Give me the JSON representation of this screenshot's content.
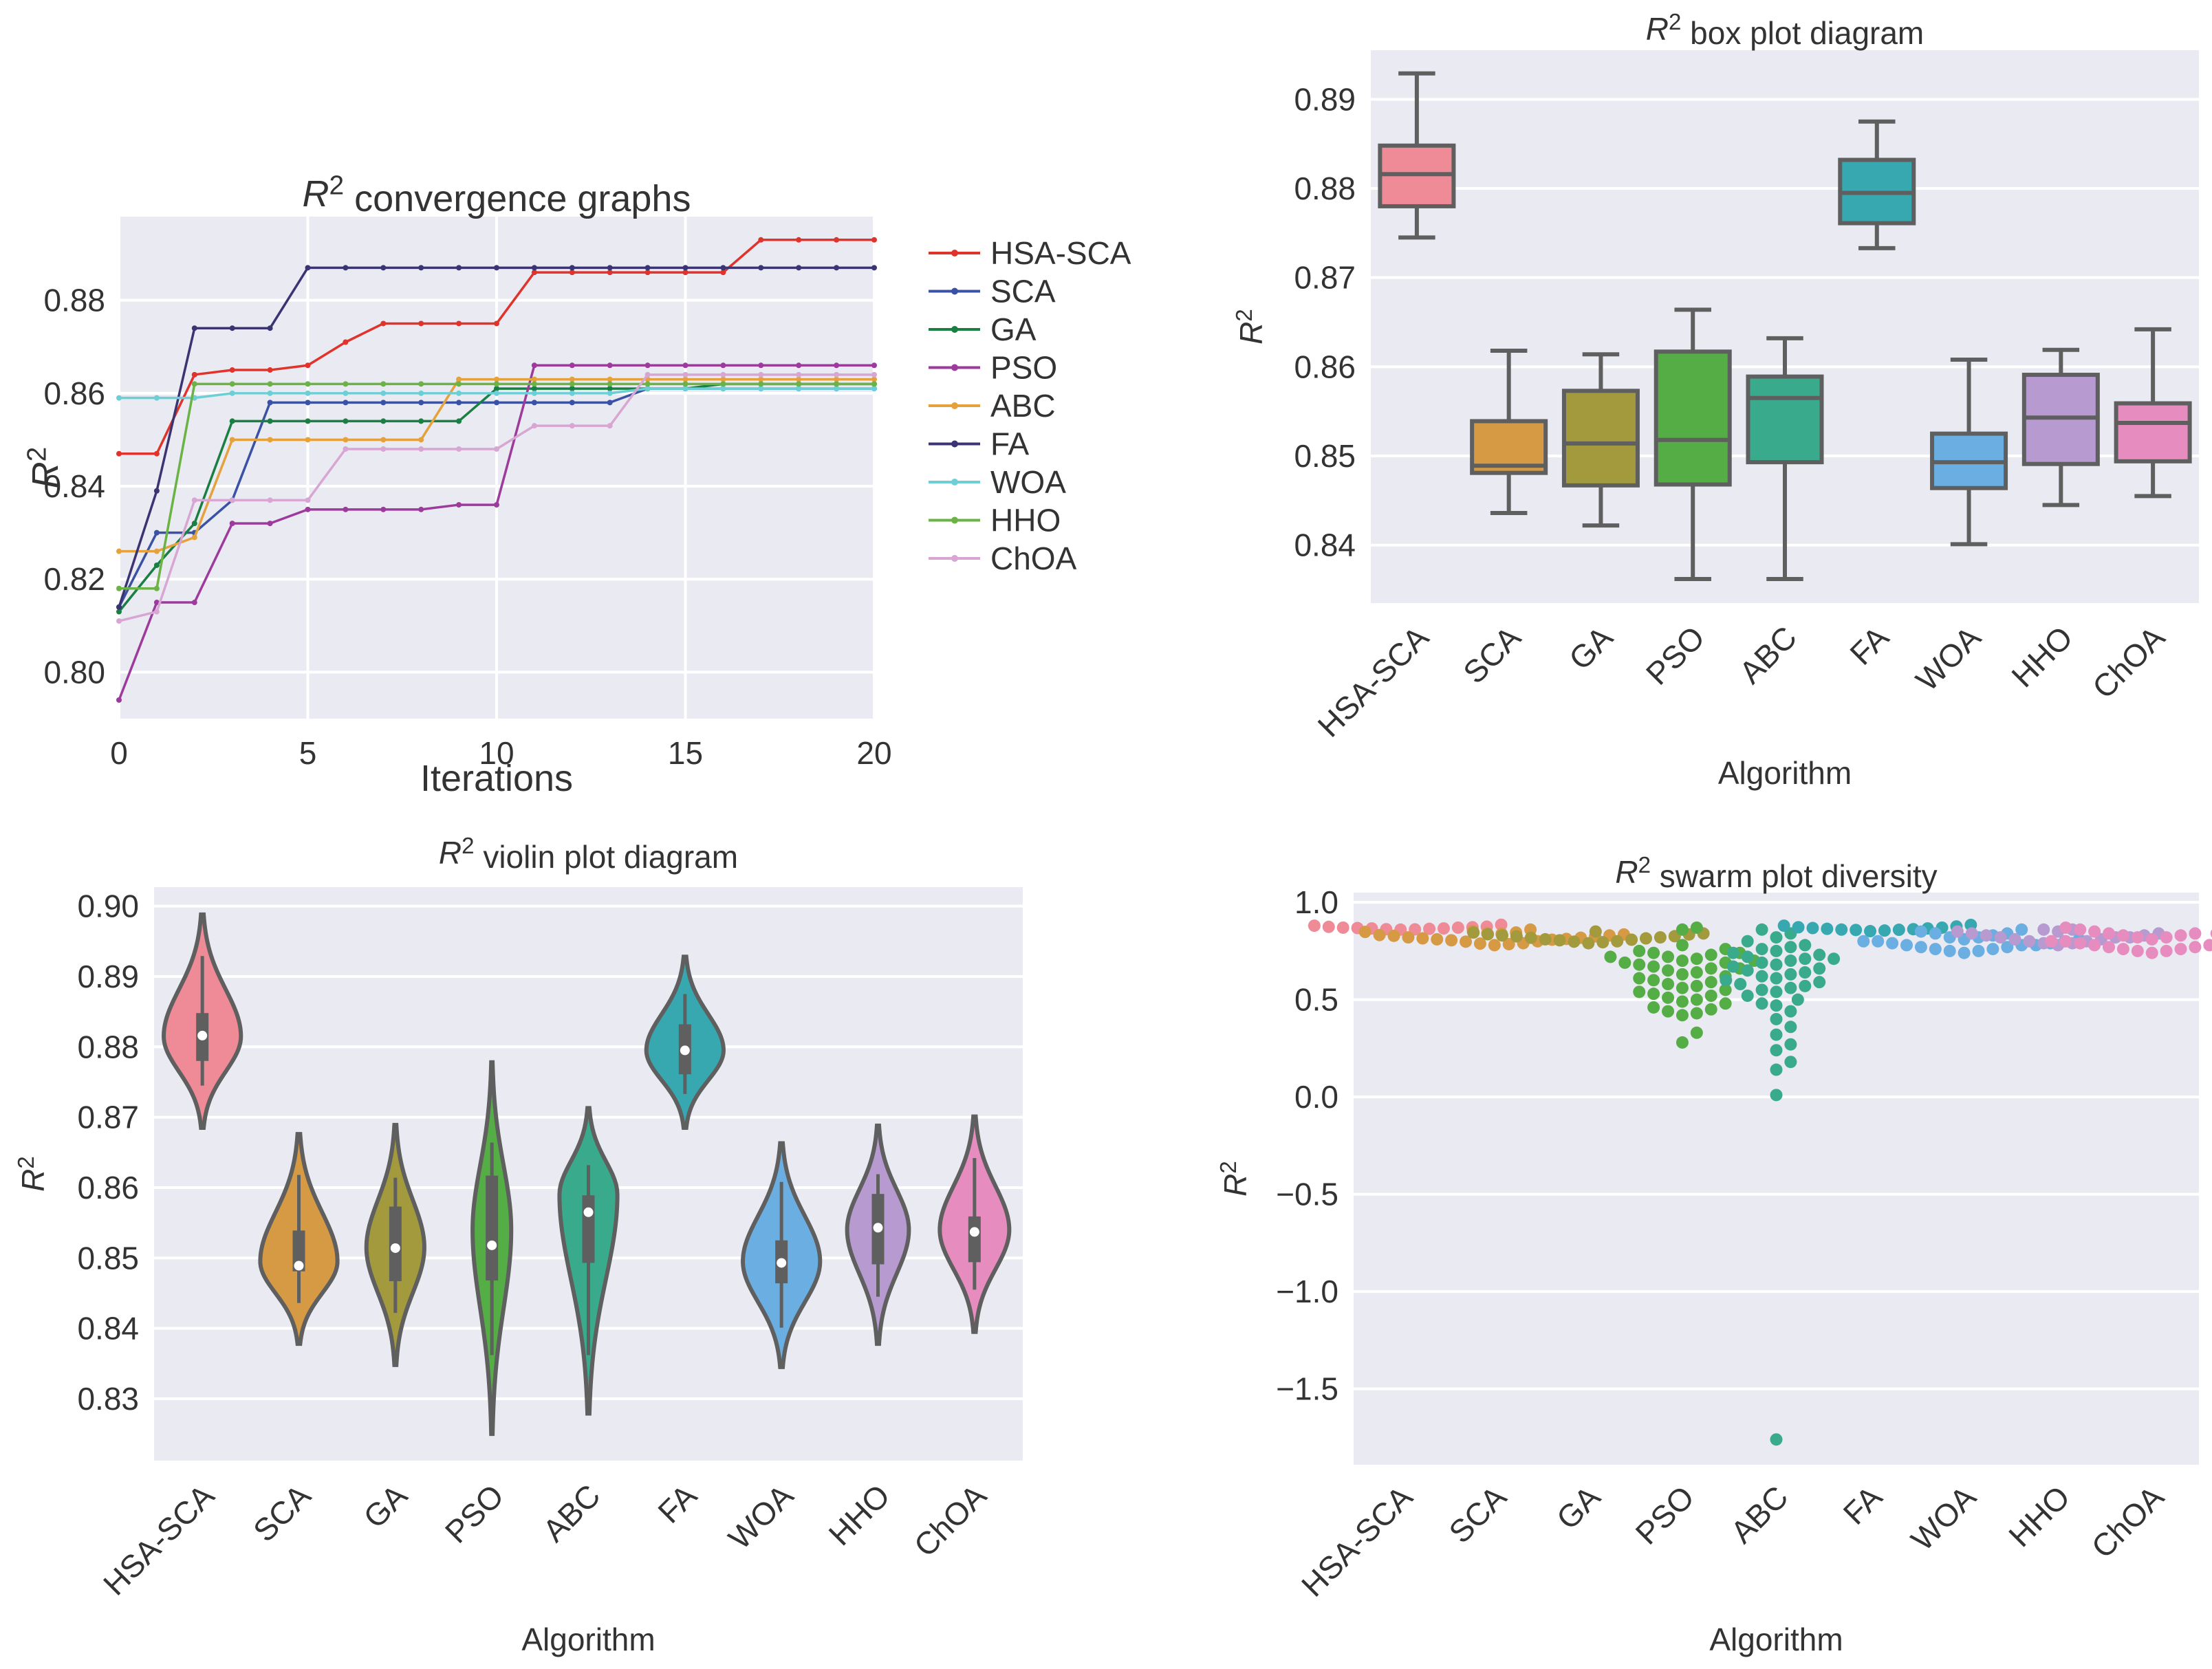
{
  "colors": {
    "panel_bg": "#eaeaf2",
    "grid": "#ffffff",
    "edge": "#5f5f5f"
  },
  "chart_data": [
    {
      "id": "convergence",
      "type": "line",
      "title_prefix": "R",
      "title_sup": "2",
      "title_rest": " convergence graphs",
      "xlabel": "Iterations",
      "ylabel_prefix": "R",
      "ylabel_sup": "2",
      "xlim": [
        0,
        20
      ],
      "ylim": [
        0.79,
        0.898
      ],
      "xticks": [
        0,
        5,
        10,
        15,
        20
      ],
      "xtick_labels": [
        "0",
        "5",
        "10",
        "15",
        "20"
      ],
      "yticks": [
        0.8,
        0.82,
        0.84,
        0.86,
        0.88
      ],
      "ytick_labels": [
        "0.80",
        "0.82",
        "0.84",
        "0.86",
        "0.88"
      ],
      "x": [
        0,
        1,
        2,
        3,
        4,
        5,
        6,
        7,
        8,
        9,
        10,
        11,
        12,
        13,
        14,
        15,
        16,
        17,
        18,
        19,
        20
      ],
      "series": [
        {
          "name": "HSA-SCA",
          "color": "#e0332b",
          "values": [
            0.847,
            0.847,
            0.864,
            0.865,
            0.865,
            0.866,
            0.871,
            0.875,
            0.875,
            0.875,
            0.875,
            0.886,
            0.886,
            0.886,
            0.886,
            0.886,
            0.886,
            0.893,
            0.893,
            0.893,
            0.893
          ]
        },
        {
          "name": "SCA",
          "color": "#3a52a4",
          "values": [
            0.814,
            0.83,
            0.83,
            0.837,
            0.858,
            0.858,
            0.858,
            0.858,
            0.858,
            0.858,
            0.858,
            0.858,
            0.858,
            0.858,
            0.861,
            0.861,
            0.861,
            0.861,
            0.861,
            0.861,
            0.861
          ]
        },
        {
          "name": "GA",
          "color": "#1a7f43",
          "values": [
            0.813,
            0.823,
            0.832,
            0.854,
            0.854,
            0.854,
            0.854,
            0.854,
            0.854,
            0.854,
            0.861,
            0.861,
            0.861,
            0.861,
            0.861,
            0.861,
            0.862,
            0.862,
            0.862,
            0.862,
            0.862
          ]
        },
        {
          "name": "PSO",
          "color": "#9c3b9c",
          "values": [
            0.794,
            0.815,
            0.815,
            0.832,
            0.832,
            0.835,
            0.835,
            0.835,
            0.835,
            0.836,
            0.836,
            0.866,
            0.866,
            0.866,
            0.866,
            0.866,
            0.866,
            0.866,
            0.866,
            0.866,
            0.866
          ]
        },
        {
          "name": "ABC",
          "color": "#e5a13b",
          "values": [
            0.826,
            0.826,
            0.829,
            0.85,
            0.85,
            0.85,
            0.85,
            0.85,
            0.85,
            0.863,
            0.863,
            0.863,
            0.863,
            0.863,
            0.863,
            0.863,
            0.863,
            0.863,
            0.863,
            0.863,
            0.863
          ]
        },
        {
          "name": "FA",
          "color": "#3b3473",
          "values": [
            0.814,
            0.839,
            0.874,
            0.874,
            0.874,
            0.887,
            0.887,
            0.887,
            0.887,
            0.887,
            0.887,
            0.887,
            0.887,
            0.887,
            0.887,
            0.887,
            0.887,
            0.887,
            0.887,
            0.887,
            0.887
          ]
        },
        {
          "name": "WOA",
          "color": "#6dcfd6",
          "values": [
            0.859,
            0.859,
            0.859,
            0.86,
            0.86,
            0.86,
            0.86,
            0.86,
            0.86,
            0.86,
            0.86,
            0.86,
            0.86,
            0.86,
            0.861,
            0.861,
            0.861,
            0.861,
            0.861,
            0.861,
            0.861
          ]
        },
        {
          "name": "HHO",
          "color": "#6ab344",
          "values": [
            0.818,
            0.818,
            0.862,
            0.862,
            0.862,
            0.862,
            0.862,
            0.862,
            0.862,
            0.862,
            0.862,
            0.862,
            0.862,
            0.862,
            0.862,
            0.862,
            0.862,
            0.862,
            0.862,
            0.862,
            0.862
          ]
        },
        {
          "name": "ChOA",
          "color": "#d8a6d2",
          "values": [
            0.811,
            0.813,
            0.837,
            0.837,
            0.837,
            0.837,
            0.848,
            0.848,
            0.848,
            0.848,
            0.848,
            0.853,
            0.853,
            0.853,
            0.864,
            0.864,
            0.864,
            0.864,
            0.864,
            0.864,
            0.864
          ]
        }
      ]
    },
    {
      "id": "box",
      "type": "box",
      "title_prefix": "R",
      "title_sup": "2",
      "title_rest": " box plot diagram",
      "xlabel": "Algorithm",
      "ylabel_prefix": "R",
      "ylabel_sup": "2",
      "ylim": [
        0.8335,
        0.8955
      ],
      "yticks": [
        0.84,
        0.85,
        0.86,
        0.87,
        0.88,
        0.89
      ],
      "ytick_labels": [
        "0.84",
        "0.85",
        "0.86",
        "0.87",
        "0.88",
        "0.89"
      ],
      "categories": [
        "HSA-SCA",
        "SCA",
        "GA",
        "PSO",
        "ABC",
        "FA",
        "WOA",
        "HHO",
        "ChOA"
      ],
      "colors": [
        "#ef8a97",
        "#d69a45",
        "#a29a3c",
        "#55ad46",
        "#3aaa8d",
        "#37a8b0",
        "#6aaee2",
        "#b69ad0",
        "#e68cbf"
      ],
      "boxes": [
        {
          "whislo": 0.8745,
          "q1": 0.878,
          "med": 0.8816,
          "q3": 0.8848,
          "whishi": 0.8929
        },
        {
          "whislo": 0.8436,
          "q1": 0.8481,
          "med": 0.8489,
          "q3": 0.8539,
          "whishi": 0.8618
        },
        {
          "whislo": 0.8422,
          "q1": 0.8467,
          "med": 0.8514,
          "q3": 0.8573,
          "whishi": 0.8614
        },
        {
          "whislo": 0.8362,
          "q1": 0.8468,
          "med": 0.8518,
          "q3": 0.8617,
          "whishi": 0.8664
        },
        {
          "whislo": 0.8362,
          "q1": 0.8493,
          "med": 0.8565,
          "q3": 0.8589,
          "whishi": 0.8632
        },
        {
          "whislo": 0.8733,
          "q1": 0.8761,
          "med": 0.8795,
          "q3": 0.8832,
          "whishi": 0.8875
        },
        {
          "whislo": 0.8401,
          "q1": 0.8464,
          "med": 0.8493,
          "q3": 0.8525,
          "whishi": 0.8608
        },
        {
          "whislo": 0.8445,
          "q1": 0.8491,
          "med": 0.8543,
          "q3": 0.8591,
          "whishi": 0.8619
        },
        {
          "whislo": 0.8455,
          "q1": 0.8494,
          "med": 0.8537,
          "q3": 0.8559,
          "whishi": 0.8642
        }
      ]
    },
    {
      "id": "violin",
      "type": "violin",
      "title_prefix": "R",
      "title_sup": "2",
      "title_rest": " violin plot diagram",
      "xlabel": "Algorithm",
      "ylabel_prefix": "R",
      "ylabel_sup": "2",
      "ylim": [
        0.8212,
        0.9027
      ],
      "yticks": [
        0.83,
        0.84,
        0.85,
        0.86,
        0.87,
        0.88,
        0.89,
        0.9
      ],
      "ytick_labels": [
        "0.83",
        "0.84",
        "0.85",
        "0.86",
        "0.87",
        "0.88",
        "0.89",
        "0.90"
      ],
      "categories": [
        "HSA-SCA",
        "SCA",
        "GA",
        "PSO",
        "ABC",
        "FA",
        "WOA",
        "HHO",
        "ChOA"
      ],
      "colors": [
        "#ef8a97",
        "#d69a45",
        "#a29a3c",
        "#55ad46",
        "#3aaa8d",
        "#37a8b0",
        "#6aaee2",
        "#b69ad0",
        "#e68cbf"
      ],
      "violins": [
        {
          "min": 0.8685,
          "max": 0.8988,
          "mode": 0.8815,
          "width": 0.4,
          "q1": 0.878,
          "q3": 0.8848,
          "wlo": 0.8745,
          "whi": 0.8929,
          "med": 0.8816
        },
        {
          "min": 0.8378,
          "max": 0.8676,
          "mode": 0.8495,
          "width": 0.4,
          "q1": 0.8481,
          "q3": 0.8539,
          "wlo": 0.8436,
          "whi": 0.8618,
          "med": 0.8489
        },
        {
          "min": 0.8348,
          "max": 0.8689,
          "mode": 0.8515,
          "width": 0.3,
          "q1": 0.8467,
          "q3": 0.8573,
          "wlo": 0.8422,
          "whi": 0.8614,
          "med": 0.8514
        },
        {
          "min": 0.825,
          "max": 0.8778,
          "mode": 0.854,
          "width": 0.2,
          "q1": 0.8468,
          "q3": 0.8617,
          "wlo": 0.8362,
          "whi": 0.8664,
          "med": 0.8518
        },
        {
          "min": 0.8279,
          "max": 0.8713,
          "mode": 0.859,
          "width": 0.3,
          "q1": 0.8493,
          "q3": 0.8589,
          "wlo": 0.8362,
          "whi": 0.8632,
          "med": 0.8565
        },
        {
          "min": 0.8685,
          "max": 0.8928,
          "mode": 0.8795,
          "width": 0.4,
          "q1": 0.8761,
          "q3": 0.8832,
          "wlo": 0.8733,
          "whi": 0.8875,
          "med": 0.8795
        },
        {
          "min": 0.8345,
          "max": 0.8663,
          "mode": 0.8495,
          "width": 0.4,
          "q1": 0.8464,
          "q3": 0.8525,
          "wlo": 0.8401,
          "whi": 0.8608,
          "med": 0.8493
        },
        {
          "min": 0.8378,
          "max": 0.8688,
          "mode": 0.854,
          "width": 0.32,
          "q1": 0.8491,
          "q3": 0.8591,
          "wlo": 0.8445,
          "whi": 0.8619,
          "med": 0.8543
        },
        {
          "min": 0.8395,
          "max": 0.8701,
          "mode": 0.854,
          "width": 0.36,
          "q1": 0.8494,
          "q3": 0.8559,
          "wlo": 0.8455,
          "whi": 0.8642,
          "med": 0.8537
        }
      ]
    },
    {
      "id": "swarm",
      "type": "scatter",
      "title_prefix": "R",
      "title_sup": "2",
      "title_rest": " swarm plot diversity",
      "xlabel": "Algorithm",
      "ylabel_prefix": "R",
      "ylabel_sup": "2",
      "ylim": [
        -1.89,
        1.05
      ],
      "yticks": [
        1.0,
        0.5,
        0.0,
        -0.5,
        -1.0,
        -1.5
      ],
      "ytick_labels": [
        "1.0",
        "0.5",
        "0.0",
        "−0.5",
        "−1.0",
        "−1.5"
      ],
      "categories": [
        "HSA-SCA",
        "SCA",
        "GA",
        "PSO",
        "ABC",
        "FA",
        "WOA",
        "HHO",
        "ChOA"
      ],
      "colors": [
        "#ef8a97",
        "#d69a45",
        "#a29a3c",
        "#55ad46",
        "#3aaa8d",
        "#37a8b0",
        "#6aaee2",
        "#b69ad0",
        "#e68cbf"
      ],
      "points": [
        [
          0.885,
          0.875,
          0.87,
          0.868,
          0.866,
          0.864,
          0.862,
          0.86,
          0.874,
          0.88,
          0.872,
          0.866,
          0.87,
          0.861
        ],
        [
          0.852,
          0.84,
          0.835,
          0.83,
          0.825,
          0.82,
          0.815,
          0.81,
          0.805,
          0.8,
          0.79,
          0.785,
          0.78,
          0.845,
          0.838,
          0.828,
          0.818,
          0.808,
          0.798,
          0.788,
          0.86,
          0.848,
          0.832,
          0.812
        ],
        [
          0.845,
          0.835,
          0.825,
          0.82,
          0.815,
          0.81,
          0.805,
          0.8,
          0.795,
          0.79,
          0.84,
          0.83,
          0.818,
          0.808,
          0.798,
          0.85,
          0.836,
          0.826
        ],
        [
          0.87,
          0.86,
          0.78,
          0.76,
          0.74,
          0.73,
          0.72,
          0.71,
          0.7,
          0.69,
          0.68,
          0.67,
          0.66,
          0.65,
          0.64,
          0.62,
          0.6,
          0.59,
          0.57,
          0.56,
          0.55,
          0.53,
          0.52,
          0.51,
          0.5,
          0.48,
          0.46,
          0.45,
          0.44,
          0.43,
          0.42,
          0.75,
          0.72,
          0.7,
          0.66,
          0.63,
          0.58,
          0.54,
          0.49,
          0.33,
          0.28,
          0.74,
          0.69,
          0.61
        ],
        [
          0.86,
          0.84,
          0.82,
          0.8,
          0.78,
          0.77,
          0.76,
          0.75,
          0.74,
          0.73,
          0.72,
          0.71,
          0.7,
          0.69,
          0.68,
          0.66,
          0.65,
          0.64,
          0.63,
          0.62,
          0.6,
          0.59,
          0.58,
          0.57,
          0.55,
          0.54,
          0.52,
          0.5,
          0.47,
          0.44,
          0.4,
          0.36,
          0.32,
          0.27,
          0.24,
          0.18,
          0.14,
          0.01,
          -1.76,
          0.67,
          0.61,
          0.56,
          0.48,
          0.71
        ],
        [
          0.88,
          0.872,
          0.866,
          0.862,
          0.858,
          0.855,
          0.852,
          0.87,
          0.868,
          0.864,
          0.86,
          0.876,
          0.884,
          0.859
        ],
        [
          0.86,
          0.84,
          0.82,
          0.81,
          0.8,
          0.79,
          0.78,
          0.77,
          0.76,
          0.75,
          0.74,
          0.83,
          0.82,
          0.8,
          0.78,
          0.76,
          0.85,
          0.81,
          0.79,
          0.77,
          0.75,
          0.84,
          0.8,
          0.78
        ],
        [
          0.86,
          0.85,
          0.84,
          0.83,
          0.82,
          0.81,
          0.8,
          0.79,
          0.78,
          0.84,
          0.82,
          0.8,
          0.86,
          0.83,
          0.81,
          0.79,
          0.85,
          0.82
        ],
        [
          0.87,
          0.85,
          0.84,
          0.83,
          0.82,
          0.81,
          0.8,
          0.79,
          0.78,
          0.77,
          0.76,
          0.75,
          0.74,
          0.86,
          0.84,
          0.82,
          0.8,
          0.78,
          0.76,
          0.85,
          0.83,
          0.81,
          0.79,
          0.77,
          0.75,
          0.84,
          0.8,
          0.78
        ]
      ]
    }
  ]
}
